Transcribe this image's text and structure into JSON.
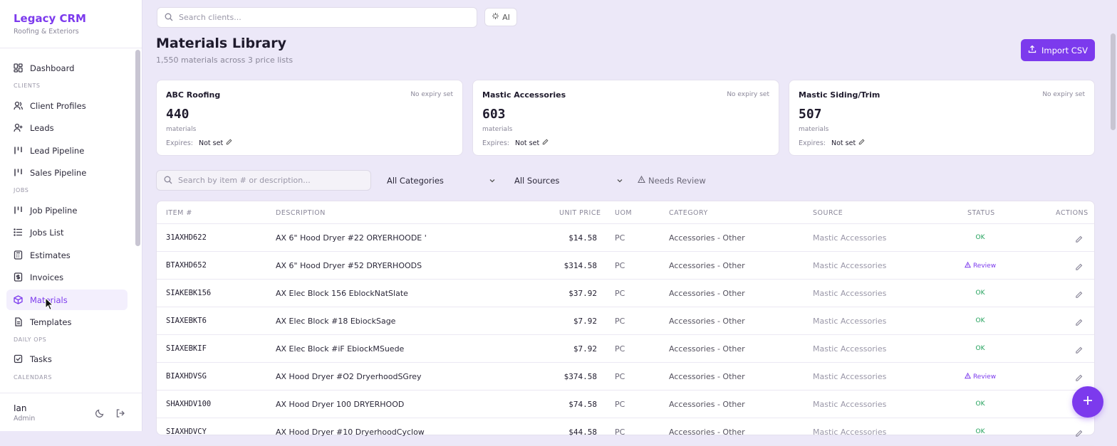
{
  "brand": {
    "title": "Legacy CRM",
    "subtitle": "Roofing & Exteriors"
  },
  "sidebar": {
    "items": [
      {
        "label": "Dashboard",
        "icon": "dashboard-icon"
      },
      {
        "label": "Client Profiles",
        "icon": "users-icon"
      },
      {
        "label": "Leads",
        "icon": "user-plus-icon"
      },
      {
        "label": "Lead Pipeline",
        "icon": "kanban-icon"
      },
      {
        "label": "Sales Pipeline",
        "icon": "kanban-icon"
      },
      {
        "label": "Job Pipeline",
        "icon": "kanban-icon"
      },
      {
        "label": "Jobs List",
        "icon": "list-icon"
      },
      {
        "label": "Estimates",
        "icon": "calculator-icon"
      },
      {
        "label": "Invoices",
        "icon": "receipt-icon"
      },
      {
        "label": "Materials",
        "icon": "package-icon",
        "active": true
      },
      {
        "label": "Templates",
        "icon": "file-icon"
      },
      {
        "label": "Tasks",
        "icon": "checkbox-icon"
      }
    ],
    "sections": {
      "clients": "CLIENTS",
      "jobs": "JOBS",
      "daily_ops": "DAILY OPS",
      "calendars": "CALENDARS"
    },
    "user": {
      "name": "Ian",
      "role": "Admin"
    }
  },
  "topbar": {
    "search_placeholder": "Search clients...",
    "ai_label": "AI"
  },
  "page": {
    "title": "Materials Library",
    "subtitle": "1,550 materials across 3 price lists",
    "import_label": "Import CSV"
  },
  "price_lists": [
    {
      "name": "ABC Roofing",
      "expiry_note": "No expiry set",
      "count": "440",
      "unit": "materials",
      "expires_label": "Expires:",
      "expires_value": "Not set"
    },
    {
      "name": "Mastic Accessories",
      "expiry_note": "No expiry set",
      "count": "603",
      "unit": "materials",
      "expires_label": "Expires:",
      "expires_value": "Not set"
    },
    {
      "name": "Mastic Siding/Trim",
      "expiry_note": "No expiry set",
      "count": "507",
      "unit": "materials",
      "expires_label": "Expires:",
      "expires_value": "Not set"
    }
  ],
  "filters": {
    "search_placeholder": "Search by item # or description...",
    "category": "All Categories",
    "source": "All Sources",
    "needs_review": "Needs Review"
  },
  "table": {
    "headers": [
      "ITEM #",
      "DESCRIPTION",
      "UNIT PRICE",
      "UOM",
      "CATEGORY",
      "SOURCE",
      "STATUS",
      "ACTIONS"
    ],
    "rows": [
      {
        "item": "31AXHD622",
        "desc": "AX 6\" Hood Dryer #22 ORYERHOODE '",
        "price": "$14.58",
        "uom": "PC",
        "category": "Accessories - Other",
        "source": "Mastic Accessories",
        "status": "OK"
      },
      {
        "item": "BTAXHD652",
        "desc": "AX 6\" Hood Dryer #52 DRYERHOODS",
        "price": "$314.58",
        "uom": "PC",
        "category": "Accessories - Other",
        "source": "Mastic Accessories",
        "status": "Review"
      },
      {
        "item": "SIAKEBK156",
        "desc": "AX Elec Block 156 EblockNatSlate",
        "price": "$37.92",
        "uom": "PC",
        "category": "Accessories - Other",
        "source": "Mastic Accessories",
        "status": "OK"
      },
      {
        "item": "SIAXEBKT6",
        "desc": "AX Elec Block #18 EbiockSage",
        "price": "$7.92",
        "uom": "PC",
        "category": "Accessories - Other",
        "source": "Mastic Accessories",
        "status": "OK"
      },
      {
        "item": "SIAXEBKIF",
        "desc": "AX Elec Block #iF EbiockMSuede",
        "price": "$7.92",
        "uom": "PC",
        "category": "Accessories - Other",
        "source": "Mastic Accessories",
        "status": "OK"
      },
      {
        "item": "BIAXHDVSG",
        "desc": "AX Hood Dryer #O2 DryerhoodSGrey",
        "price": "$374.58",
        "uom": "PC",
        "category": "Accessories - Other",
        "source": "Mastic Accessories",
        "status": "Review"
      },
      {
        "item": "SHAXHDV100",
        "desc": "AX Hood Dryer 100 DRYERHOOD",
        "price": "$74.58",
        "uom": "PC",
        "category": "Accessories - Other",
        "source": "Mastic Accessories",
        "status": "OK"
      },
      {
        "item": "SIAXHDVCY",
        "desc": "AX Hood Dryer #10 DryerhoodCyclow",
        "price": "$44.58",
        "uom": "PC",
        "category": "Accessories - Other",
        "source": "Mastic Accessories",
        "status": "OK"
      }
    ]
  },
  "colors": {
    "accent": "#7c3aed",
    "ok": "#22a15b",
    "background": "#ece8f8"
  }
}
